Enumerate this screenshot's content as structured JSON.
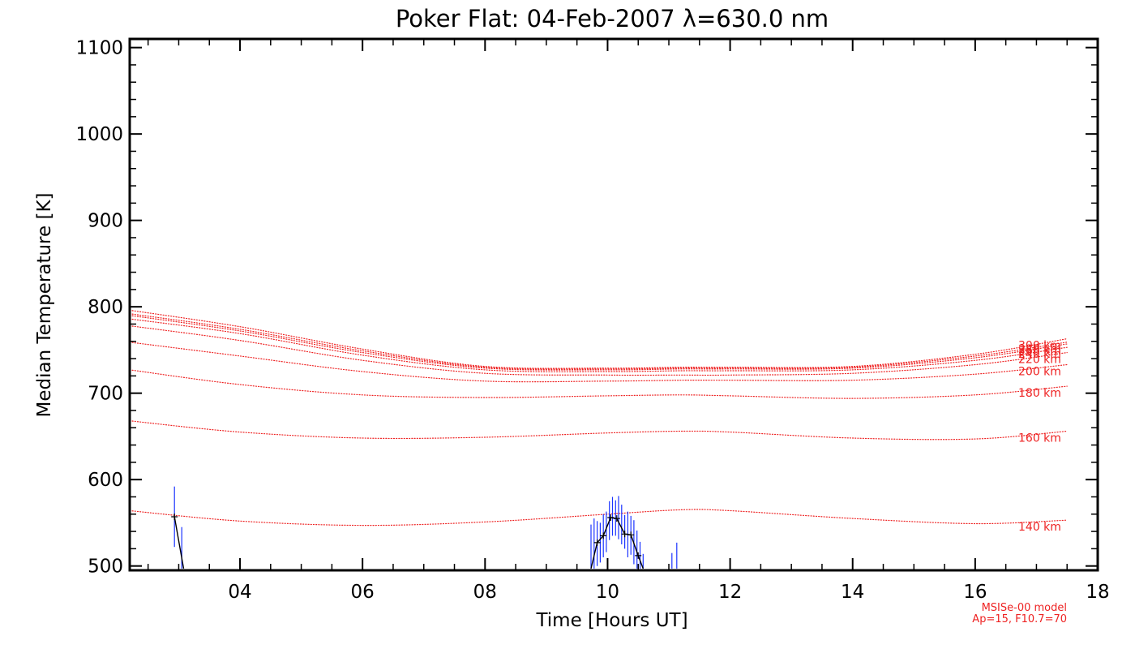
{
  "chart_data": {
    "type": "line",
    "title": "Poker Flat: 04-Feb-2007 λ=630.0 nm",
    "xlabel": "Time [Hours UT]",
    "ylabel": "Median Temperature [K]",
    "xlim": [
      2.2,
      18.0
    ],
    "ylim": [
      495,
      1110
    ],
    "x_ticks": [
      4,
      6,
      8,
      10,
      12,
      14,
      16,
      18
    ],
    "x_tick_labels": [
      "04",
      "06",
      "08",
      "10",
      "12",
      "14",
      "16",
      "18"
    ],
    "y_ticks": [
      500,
      600,
      700,
      800,
      900,
      1000,
      1100
    ],
    "y_tick_labels": [
      "500",
      "600",
      "700",
      "800",
      "900",
      "1000",
      "1100"
    ],
    "colors": {
      "model": "#ee2222",
      "error_bar": "#1a33ff",
      "data": "#000000",
      "axis": "#000000"
    },
    "model_series": [
      {
        "name": "140 km",
        "label": "140 km",
        "x": [
          2.2,
          4,
          6,
          8,
          10,
          11.2,
          12,
          14,
          16,
          17.5
        ],
        "values": [
          564,
          552,
          547,
          551,
          560,
          565,
          564,
          555,
          549,
          553
        ]
      },
      {
        "name": "160 km",
        "label": "160 km",
        "x": [
          2.2,
          4,
          6,
          8,
          10,
          11.2,
          12,
          14,
          16,
          17.5
        ],
        "values": [
          668,
          655,
          648,
          649,
          654,
          656,
          655,
          648,
          647,
          656
        ]
      },
      {
        "name": "180 km",
        "label": "180 km",
        "x": [
          2.2,
          4,
          6,
          8,
          10,
          11.2,
          12,
          14,
          16,
          17.5
        ],
        "values": [
          727,
          710,
          698,
          695,
          697,
          698,
          697,
          694,
          698,
          708
        ]
      },
      {
        "name": "200 km",
        "label": "200 km",
        "x": [
          2.2,
          4,
          6,
          8,
          10,
          11.2,
          12,
          14,
          16,
          17.5
        ],
        "values": [
          759,
          743,
          725,
          714,
          714,
          715,
          715,
          715,
          722,
          733
        ]
      },
      {
        "name": "220 km",
        "label": "220 km",
        "x": [
          2.2,
          4,
          6,
          8,
          10,
          11.2,
          12,
          14,
          16,
          17.5
        ],
        "values": [
          778,
          761,
          738,
          723,
          721,
          721,
          721,
          723,
          733,
          747
        ]
      },
      {
        "name": "240 km",
        "label": "240 km",
        "x": [
          2.2,
          4,
          6,
          8,
          10,
          11.2,
          12,
          14,
          16,
          17.5
        ],
        "values": [
          786,
          769,
          744,
          727,
          725,
          726,
          726,
          727,
          738,
          753
        ]
      },
      {
        "name": "260 km",
        "label": "260 km",
        "x": [
          2.2,
          4,
          6,
          8,
          10,
          11.2,
          12,
          14,
          16,
          17.5
        ],
        "values": [
          790,
          772,
          747,
          729,
          727,
          728,
          728,
          729,
          741,
          757
        ]
      },
      {
        "name": "280 km",
        "label": "280 km",
        "x": [
          2.2,
          4,
          6,
          8,
          10,
          11.2,
          12,
          14,
          16,
          17.5
        ],
        "values": [
          792,
          774,
          749,
          730,
          728,
          729,
          729,
          730,
          743,
          759
        ]
      },
      {
        "name": "300 km",
        "label": "300 km",
        "x": [
          2.2,
          4,
          6,
          8,
          10,
          11.2,
          12,
          14,
          16,
          17.5
        ],
        "values": [
          796,
          777,
          751,
          731,
          729,
          730,
          730,
          731,
          745,
          763
        ]
      }
    ],
    "data_series": [
      {
        "name": "segment-1",
        "x": [
          2.93,
          3.08
        ],
        "values": [
          557,
          497
        ]
      },
      {
        "name": "segment-2",
        "x": [
          9.73,
          9.83,
          9.93,
          10.05,
          10.15,
          10.28,
          10.38,
          10.5,
          10.58
        ],
        "values": [
          497,
          527,
          535,
          556,
          555,
          537,
          536,
          512,
          497
        ]
      }
    ],
    "error_bars": [
      {
        "x": 2.93,
        "low": 522,
        "high": 592
      },
      {
        "x": 3.05,
        "low": 497,
        "high": 545
      },
      {
        "x": 9.73,
        "low": 497,
        "high": 548
      },
      {
        "x": 9.78,
        "low": 497,
        "high": 555
      },
      {
        "x": 9.83,
        "low": 500,
        "high": 552
      },
      {
        "x": 9.88,
        "low": 504,
        "high": 550
      },
      {
        "x": 9.93,
        "low": 510,
        "high": 560
      },
      {
        "x": 9.98,
        "low": 516,
        "high": 563
      },
      {
        "x": 10.03,
        "low": 530,
        "high": 575
      },
      {
        "x": 10.08,
        "low": 535,
        "high": 580
      },
      {
        "x": 10.13,
        "low": 535,
        "high": 576
      },
      {
        "x": 10.18,
        "low": 531,
        "high": 581
      },
      {
        "x": 10.23,
        "low": 525,
        "high": 571
      },
      {
        "x": 10.28,
        "low": 520,
        "high": 559
      },
      {
        "x": 10.33,
        "low": 510,
        "high": 563
      },
      {
        "x": 10.38,
        "low": 513,
        "high": 558
      },
      {
        "x": 10.43,
        "low": 502,
        "high": 553
      },
      {
        "x": 10.48,
        "low": 497,
        "high": 541
      },
      {
        "x": 10.53,
        "low": 497,
        "high": 528
      },
      {
        "x": 10.58,
        "low": 497,
        "high": 514
      },
      {
        "x": 11.05,
        "low": 497,
        "high": 515
      },
      {
        "x": 11.13,
        "low": 497,
        "high": 527
      }
    ],
    "note": [
      "MSISe-00 model",
      "Ap=15, F10.7=70"
    ]
  }
}
